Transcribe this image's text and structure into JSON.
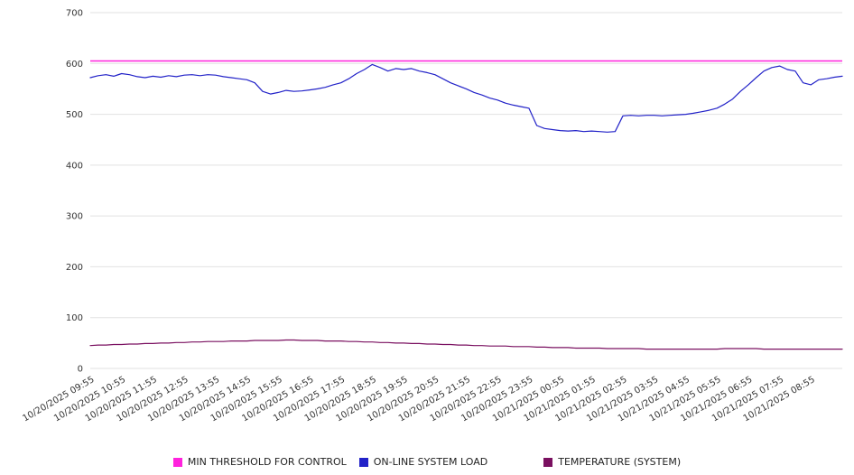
{
  "chart_data": {
    "type": "line",
    "title": "",
    "xlabel": "",
    "ylabel": "",
    "ylim": [
      0,
      700
    ],
    "ytick_step": 100,
    "grid": true,
    "legend_position": "bottom",
    "axis_text_color": "#333333",
    "grid_color": "#e2e2e2",
    "points_per_tick": 4,
    "categories": [
      "10/20/2025 09:55",
      "10/20/2025 10:55",
      "10/20/2025 11:55",
      "10/20/2025 12:55",
      "10/20/2025 13:55",
      "10/20/2025 14:55",
      "10/20/2025 15:55",
      "10/20/2025 16:55",
      "10/20/2025 17:55",
      "10/20/2025 18:55",
      "10/20/2025 19:55",
      "10/20/2025 20:55",
      "10/20/2025 21:55",
      "10/20/2025 22:55",
      "10/20/2025 23:55",
      "10/21/2025 00:55",
      "10/21/2025 01:55",
      "10/21/2025 02:55",
      "10/21/2025 03:55",
      "10/21/2025 04:55",
      "10/21/2025 05:55",
      "10/21/2025 06:55",
      "10/21/2025 07:55",
      "10/21/2025 08:55"
    ],
    "series": [
      {
        "id": "min-threshold",
        "name": "MIN THRESHOLD FOR CONTROL",
        "color": "#ff22dd",
        "type": "hline",
        "value": 605
      },
      {
        "id": "system-load",
        "name": "ON-LINE SYSTEM LOAD",
        "color": "#2222c8",
        "type": "line",
        "values": [
          572,
          576,
          578,
          575,
          580,
          578,
          574,
          572,
          575,
          573,
          576,
          574,
          577,
          578,
          576,
          578,
          577,
          574,
          572,
          570,
          568,
          562,
          545,
          540,
          543,
          547,
          545,
          546,
          548,
          550,
          553,
          558,
          562,
          570,
          580,
          588,
          598,
          592,
          585,
          590,
          588,
          590,
          585,
          582,
          578,
          570,
          562,
          556,
          550,
          543,
          538,
          532,
          528,
          522,
          518,
          515,
          512,
          478,
          472,
          470,
          468,
          467,
          468,
          466,
          467,
          466,
          465,
          466,
          497,
          498,
          497,
          498,
          498,
          497,
          498,
          499,
          500,
          502,
          505,
          508,
          512,
          520,
          530,
          545,
          558,
          572,
          585,
          592,
          595,
          588,
          585,
          562,
          558,
          568,
          570,
          573,
          575
        ]
      },
      {
        "id": "temperature",
        "name": "TEMPERATURE (SYSTEM)",
        "color": "#7a1060",
        "type": "line",
        "values": [
          45,
          46,
          46,
          47,
          47,
          48,
          48,
          49,
          49,
          50,
          50,
          51,
          51,
          52,
          52,
          53,
          53,
          53,
          54,
          54,
          54,
          55,
          55,
          55,
          55,
          56,
          56,
          55,
          55,
          55,
          54,
          54,
          54,
          53,
          53,
          52,
          52,
          51,
          51,
          50,
          50,
          49,
          49,
          48,
          48,
          47,
          47,
          46,
          46,
          45,
          45,
          44,
          44,
          44,
          43,
          43,
          43,
          42,
          42,
          41,
          41,
          41,
          40,
          40,
          40,
          40,
          39,
          39,
          39,
          39,
          39,
          38,
          38,
          38,
          38,
          38,
          38,
          38,
          38,
          38,
          38,
          39,
          39,
          39,
          39,
          39,
          38,
          38,
          38,
          38,
          38,
          38,
          38,
          38,
          38,
          38,
          38
        ]
      }
    ]
  }
}
